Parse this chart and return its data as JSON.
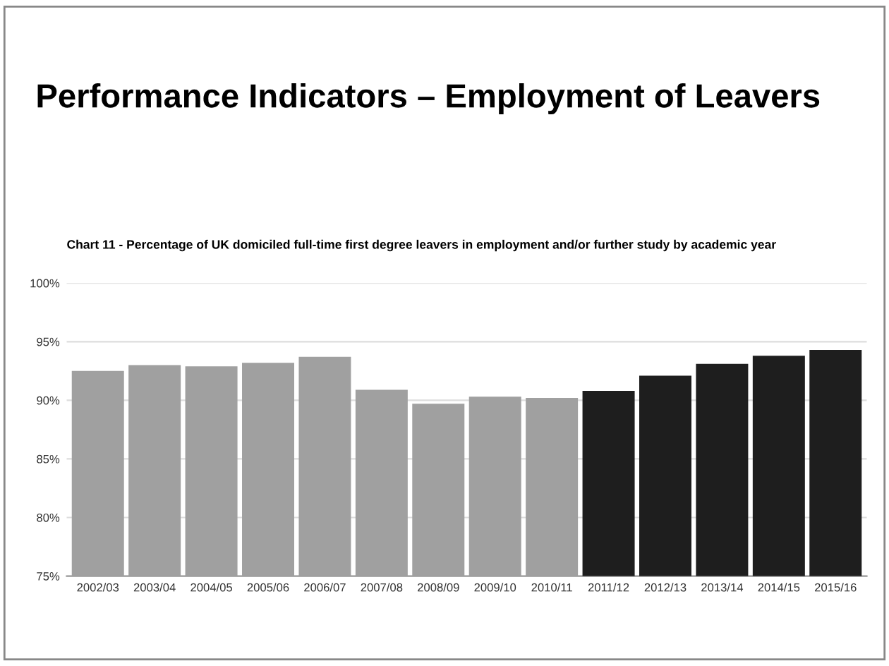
{
  "chart_data": {
    "type": "bar",
    "title": "Performance Indicators – Employment of Leavers",
    "subtitle": "Chart 11 - Percentage of UK domiciled full-time first degree leavers in employment and/or further study by academic year",
    "categories": [
      "2002/03",
      "2003/04",
      "2004/05",
      "2005/06",
      "2006/07",
      "2007/08",
      "2008/09",
      "2009/10",
      "2010/11",
      "2011/12",
      "2012/13",
      "2013/14",
      "2014/15",
      "2015/16"
    ],
    "values": [
      92.5,
      93.0,
      92.9,
      93.2,
      93.7,
      90.9,
      89.7,
      90.3,
      90.2,
      90.8,
      92.1,
      93.1,
      93.8,
      94.3
    ],
    "colors": [
      "#a0a0a0",
      "#a0a0a0",
      "#a0a0a0",
      "#a0a0a0",
      "#a0a0a0",
      "#a0a0a0",
      "#a0a0a0",
      "#a0a0a0",
      "#a0a0a0",
      "#1e1e1e",
      "#1e1e1e",
      "#1e1e1e",
      "#1e1e1e",
      "#1e1e1e"
    ],
    "ylim": [
      75,
      100
    ],
    "yticks": [
      {
        "value": 75,
        "label": "75%"
      },
      {
        "value": 80,
        "label": "80%"
      },
      {
        "value": 85,
        "label": "85%"
      },
      {
        "value": 90,
        "label": "90%"
      },
      {
        "value": 95,
        "label": "95%"
      },
      {
        "value": 100,
        "label": "100%"
      }
    ],
    "grid": "y"
  }
}
